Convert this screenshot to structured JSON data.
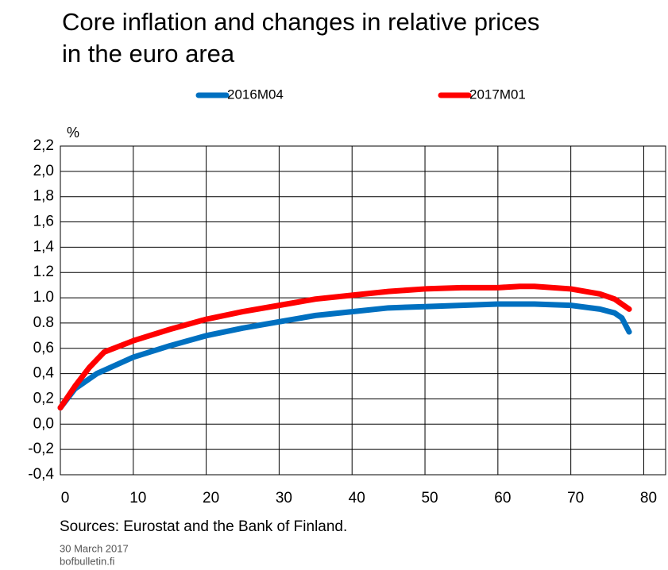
{
  "chart_data": {
    "type": "line",
    "title": [
      "Core inflation and changes in relative prices",
      "in the euro area"
    ],
    "y_unit": "%",
    "source": "Sources: Eurostat and the Bank of Finland.",
    "date": "30 March 2017",
    "site": "bofbulletin.fi",
    "series": [
      {
        "name": "2016M04",
        "color": "#0070c0",
        "x": [
          0,
          2,
          5,
          10,
          15,
          20,
          25,
          30,
          35,
          40,
          45,
          50,
          55,
          60,
          65,
          70,
          74,
          76,
          77,
          78
        ],
        "values": [
          0.13,
          0.28,
          0.4,
          0.53,
          0.62,
          0.7,
          0.76,
          0.81,
          0.86,
          0.89,
          0.92,
          0.93,
          0.94,
          0.95,
          0.95,
          0.94,
          0.91,
          0.88,
          0.84,
          0.73
        ]
      },
      {
        "name": "2017M01",
        "color": "#ff0000",
        "x": [
          0,
          2,
          4,
          6,
          10,
          15,
          20,
          25,
          30,
          35,
          40,
          45,
          50,
          55,
          60,
          63,
          65,
          70,
          74,
          76,
          78
        ],
        "values": [
          0.13,
          0.3,
          0.45,
          0.57,
          0.66,
          0.75,
          0.83,
          0.89,
          0.94,
          0.99,
          1.02,
          1.05,
          1.07,
          1.08,
          1.08,
          1.09,
          1.09,
          1.07,
          1.03,
          0.99,
          0.91
        ]
      }
    ],
    "xlim": [
      0,
      83
    ],
    "xticks": [
      0,
      10,
      20,
      30,
      40,
      50,
      60,
      70,
      80
    ],
    "ylim": [
      -0.4,
      2.2
    ],
    "yticks": [
      {
        "value": -0.4,
        "label": "-0,4"
      },
      {
        "value": -0.2,
        "label": "-0,2"
      },
      {
        "value": 0,
        "label": "0,0"
      },
      {
        "value": 0.2,
        "label": "0,2"
      },
      {
        "value": 0.4,
        "label": "0,4"
      },
      {
        "value": 0.6,
        "label": "0,6"
      },
      {
        "value": 0.8,
        "label": "0.8"
      },
      {
        "value": 1.0,
        "label": "1.0"
      },
      {
        "value": 1.2,
        "label": "1.2"
      },
      {
        "value": 1.4,
        "label": "1,4"
      },
      {
        "value": 1.6,
        "label": "1,6"
      },
      {
        "value": 1.8,
        "label": "1,8"
      },
      {
        "value": 2.0,
        "label": "2,0"
      },
      {
        "value": 2.2,
        "label": "2,2"
      }
    ],
    "grid": true,
    "legend": "top"
  }
}
